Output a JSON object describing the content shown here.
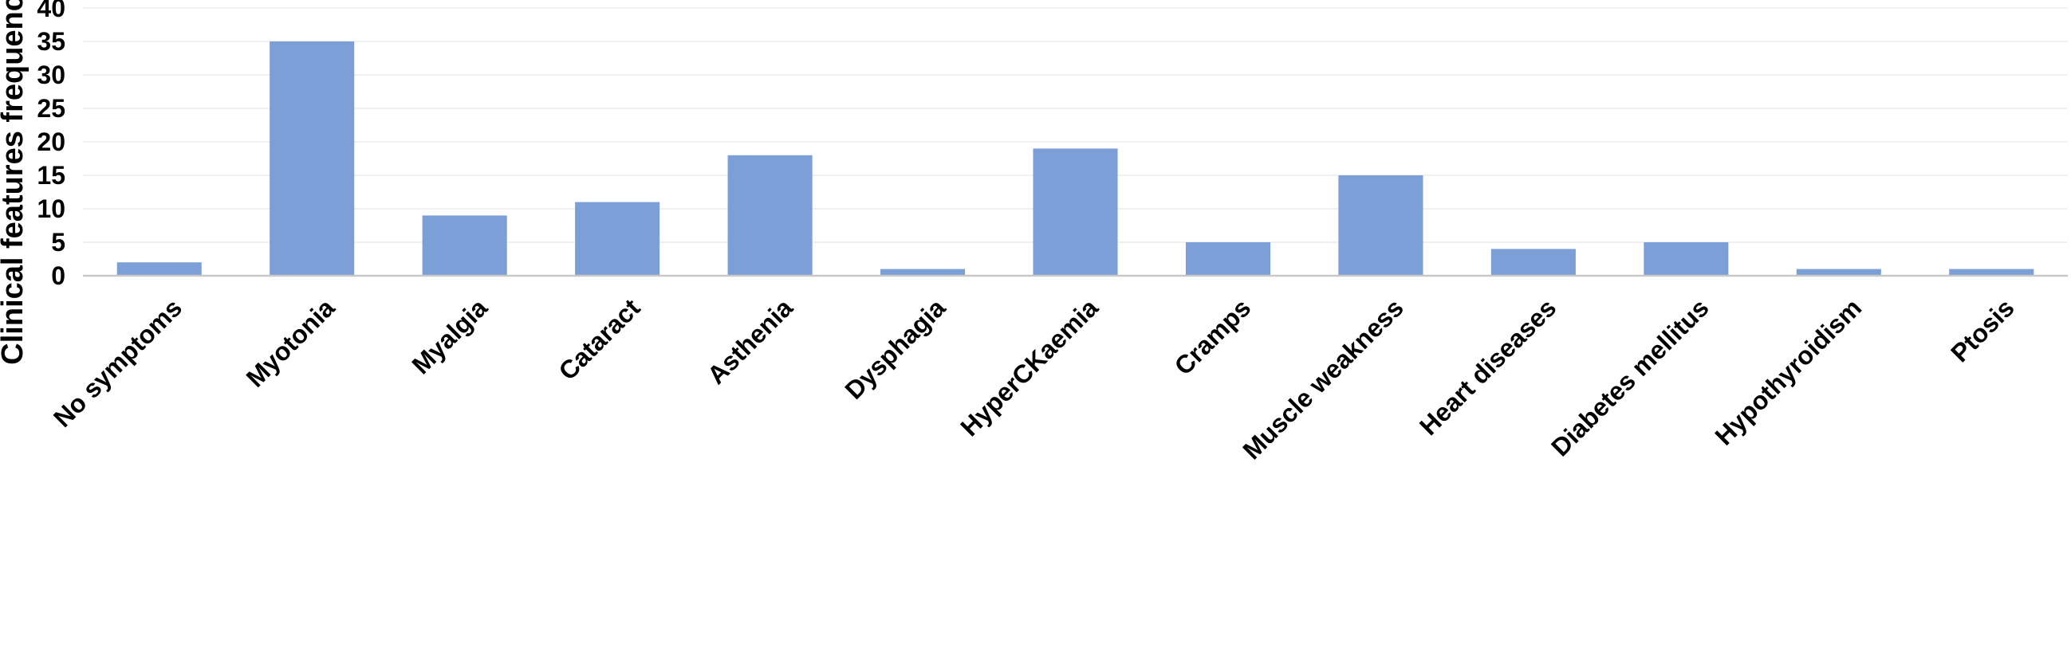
{
  "chart_data": {
    "type": "bar",
    "title": "",
    "xlabel": "",
    "ylabel": "Clinical features frequency (%)",
    "ylim": [
      0,
      40
    ],
    "yticks": [
      0,
      5,
      10,
      15,
      20,
      25,
      30,
      35,
      40
    ],
    "grid": true,
    "legend": "none",
    "bar_color": "#7b9fd6",
    "categories": [
      "No symptoms",
      "Myotonia",
      "Myalgia",
      "Cataract",
      "Asthenia",
      "Dysphagia",
      "HyperCKaemia",
      "Cramps",
      "Muscle weakness",
      "Heart diseases",
      "Diabetes mellitus",
      "Hypothyroidism",
      "Ptosis"
    ],
    "values": [
      2,
      35,
      9,
      11,
      18,
      1,
      19,
      5,
      15,
      4,
      5,
      1,
      1
    ]
  }
}
